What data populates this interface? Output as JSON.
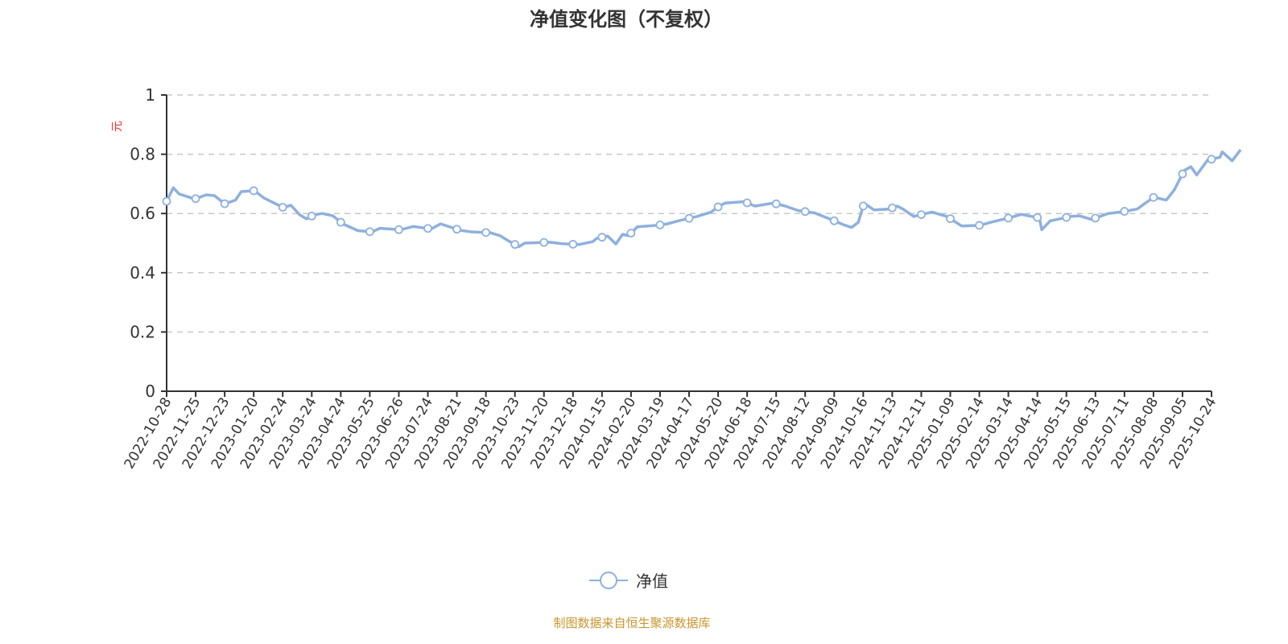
{
  "chart_data": {
    "type": "line",
    "title": "净值变化图（不复权）",
    "ylabel": "元",
    "xlabel": "",
    "ylim": [
      0,
      1
    ],
    "yticks": [
      "0",
      "0.2",
      "0.4",
      "0.6",
      "0.8",
      "1"
    ],
    "ytick_values": [
      0,
      0.2,
      0.4,
      0.6,
      0.8,
      1
    ],
    "grid": true,
    "legend_position": "bottom-center",
    "categories": [
      "2022-10-28",
      "2022-11-25",
      "2022-12-23",
      "2023-01-20",
      "2023-02-24",
      "2023-03-24",
      "2023-04-24",
      "2023-05-25",
      "2023-06-26",
      "2023-07-24",
      "2023-08-21",
      "2023-09-18",
      "2023-10-23",
      "2023-11-20",
      "2023-12-18",
      "2024-01-15",
      "2024-02-20",
      "2024-03-19",
      "2024-04-17",
      "2024-05-20",
      "2024-06-18",
      "2024-07-15",
      "2024-08-12",
      "2024-09-09",
      "2024-10-16",
      "2024-11-13",
      "2024-12-11",
      "2025-01-09",
      "2025-02-14",
      "2025-03-14",
      "2025-04-14",
      "2025-05-15",
      "2025-06-13",
      "2025-07-11",
      "2025-08-08",
      "2025-09-05",
      "2025-10-24"
    ],
    "series": [
      {
        "name": "净值",
        "color": "#8eb0de",
        "points_note": "[category index position, value]",
        "points": [
          [
            0,
            0.641
          ],
          [
            0.23,
            0.687
          ],
          [
            0.43,
            0.666
          ],
          [
            0.97,
            0.649
          ],
          [
            1.37,
            0.663
          ],
          [
            1.65,
            0.66
          ],
          [
            2.0,
            0.633
          ],
          [
            2.37,
            0.645
          ],
          [
            2.57,
            0.674
          ],
          [
            3.02,
            0.677
          ],
          [
            3.36,
            0.652
          ],
          [
            4.02,
            0.62
          ],
          [
            4.28,
            0.628
          ],
          [
            4.59,
            0.595
          ],
          [
            4.82,
            0.582
          ],
          [
            5.07,
            0.595
          ],
          [
            5.36,
            0.6
          ],
          [
            5.73,
            0.592
          ],
          [
            6.07,
            0.565
          ],
          [
            6.59,
            0.542
          ],
          [
            7.07,
            0.538
          ],
          [
            7.35,
            0.55
          ],
          [
            8.07,
            0.545
          ],
          [
            8.49,
            0.556
          ],
          [
            9.12,
            0.548
          ],
          [
            9.44,
            0.565
          ],
          [
            10.12,
            0.543
          ],
          [
            10.49,
            0.538
          ],
          [
            11.15,
            0.535
          ],
          [
            11.49,
            0.525
          ],
          [
            11.77,
            0.508
          ],
          [
            12.14,
            0.488
          ],
          [
            12.34,
            0.5
          ],
          [
            13.2,
            0.503
          ],
          [
            13.63,
            0.498
          ],
          [
            14.2,
            0.495
          ],
          [
            14.68,
            0.505
          ],
          [
            14.82,
            0.516
          ],
          [
            15.19,
            0.524
          ],
          [
            15.48,
            0.497
          ],
          [
            15.71,
            0.53
          ],
          [
            15.91,
            0.525
          ],
          [
            16.22,
            0.555
          ],
          [
            16.9,
            0.56
          ],
          [
            17.25,
            0.565
          ],
          [
            17.62,
            0.575
          ],
          [
            18.27,
            0.59
          ],
          [
            18.76,
            0.605
          ],
          [
            19.04,
            0.625
          ],
          [
            19.24,
            0.635
          ],
          [
            19.9,
            0.64
          ],
          [
            20.27,
            0.625
          ],
          [
            20.9,
            0.635
          ],
          [
            21.32,
            0.625
          ],
          [
            21.75,
            0.61
          ],
          [
            22.32,
            0.602
          ],
          [
            22.89,
            0.58
          ],
          [
            23.32,
            0.562
          ],
          [
            23.6,
            0.553
          ],
          [
            23.83,
            0.57
          ],
          [
            24.03,
            0.635
          ],
          [
            24.37,
            0.612
          ],
          [
            24.89,
            0.615
          ],
          [
            25.17,
            0.625
          ],
          [
            25.37,
            0.615
          ],
          [
            25.74,
            0.59
          ],
          [
            26.37,
            0.605
          ],
          [
            26.88,
            0.59
          ],
          [
            27.39,
            0.558
          ],
          [
            28.02,
            0.56
          ],
          [
            28.39,
            0.57
          ],
          [
            29.02,
            0.585
          ],
          [
            29.45,
            0.597
          ],
          [
            30.07,
            0.585
          ],
          [
            30.15,
            0.545
          ],
          [
            30.44,
            0.575
          ],
          [
            31.15,
            0.59
          ],
          [
            31.44,
            0.592
          ],
          [
            31.87,
            0.58
          ],
          [
            32.44,
            0.6
          ],
          [
            32.87,
            0.605
          ],
          [
            33.44,
            0.615
          ],
          [
            33.72,
            0.635
          ],
          [
            34.01,
            0.655
          ],
          [
            34.44,
            0.645
          ],
          [
            34.72,
            0.68
          ],
          [
            35.06,
            0.745
          ],
          [
            35.29,
            0.758
          ],
          [
            35.49,
            0.73
          ],
          [
            35.86,
            0.78
          ],
          [
            36.29,
            0.79
          ],
          [
            36.37,
            0.808
          ],
          [
            36.71,
            0.778
          ],
          [
            37.0,
            0.815
          ]
        ]
      }
    ]
  },
  "legend": {
    "label": "净值"
  },
  "footer": "制图数据来自恒生聚源数据库"
}
